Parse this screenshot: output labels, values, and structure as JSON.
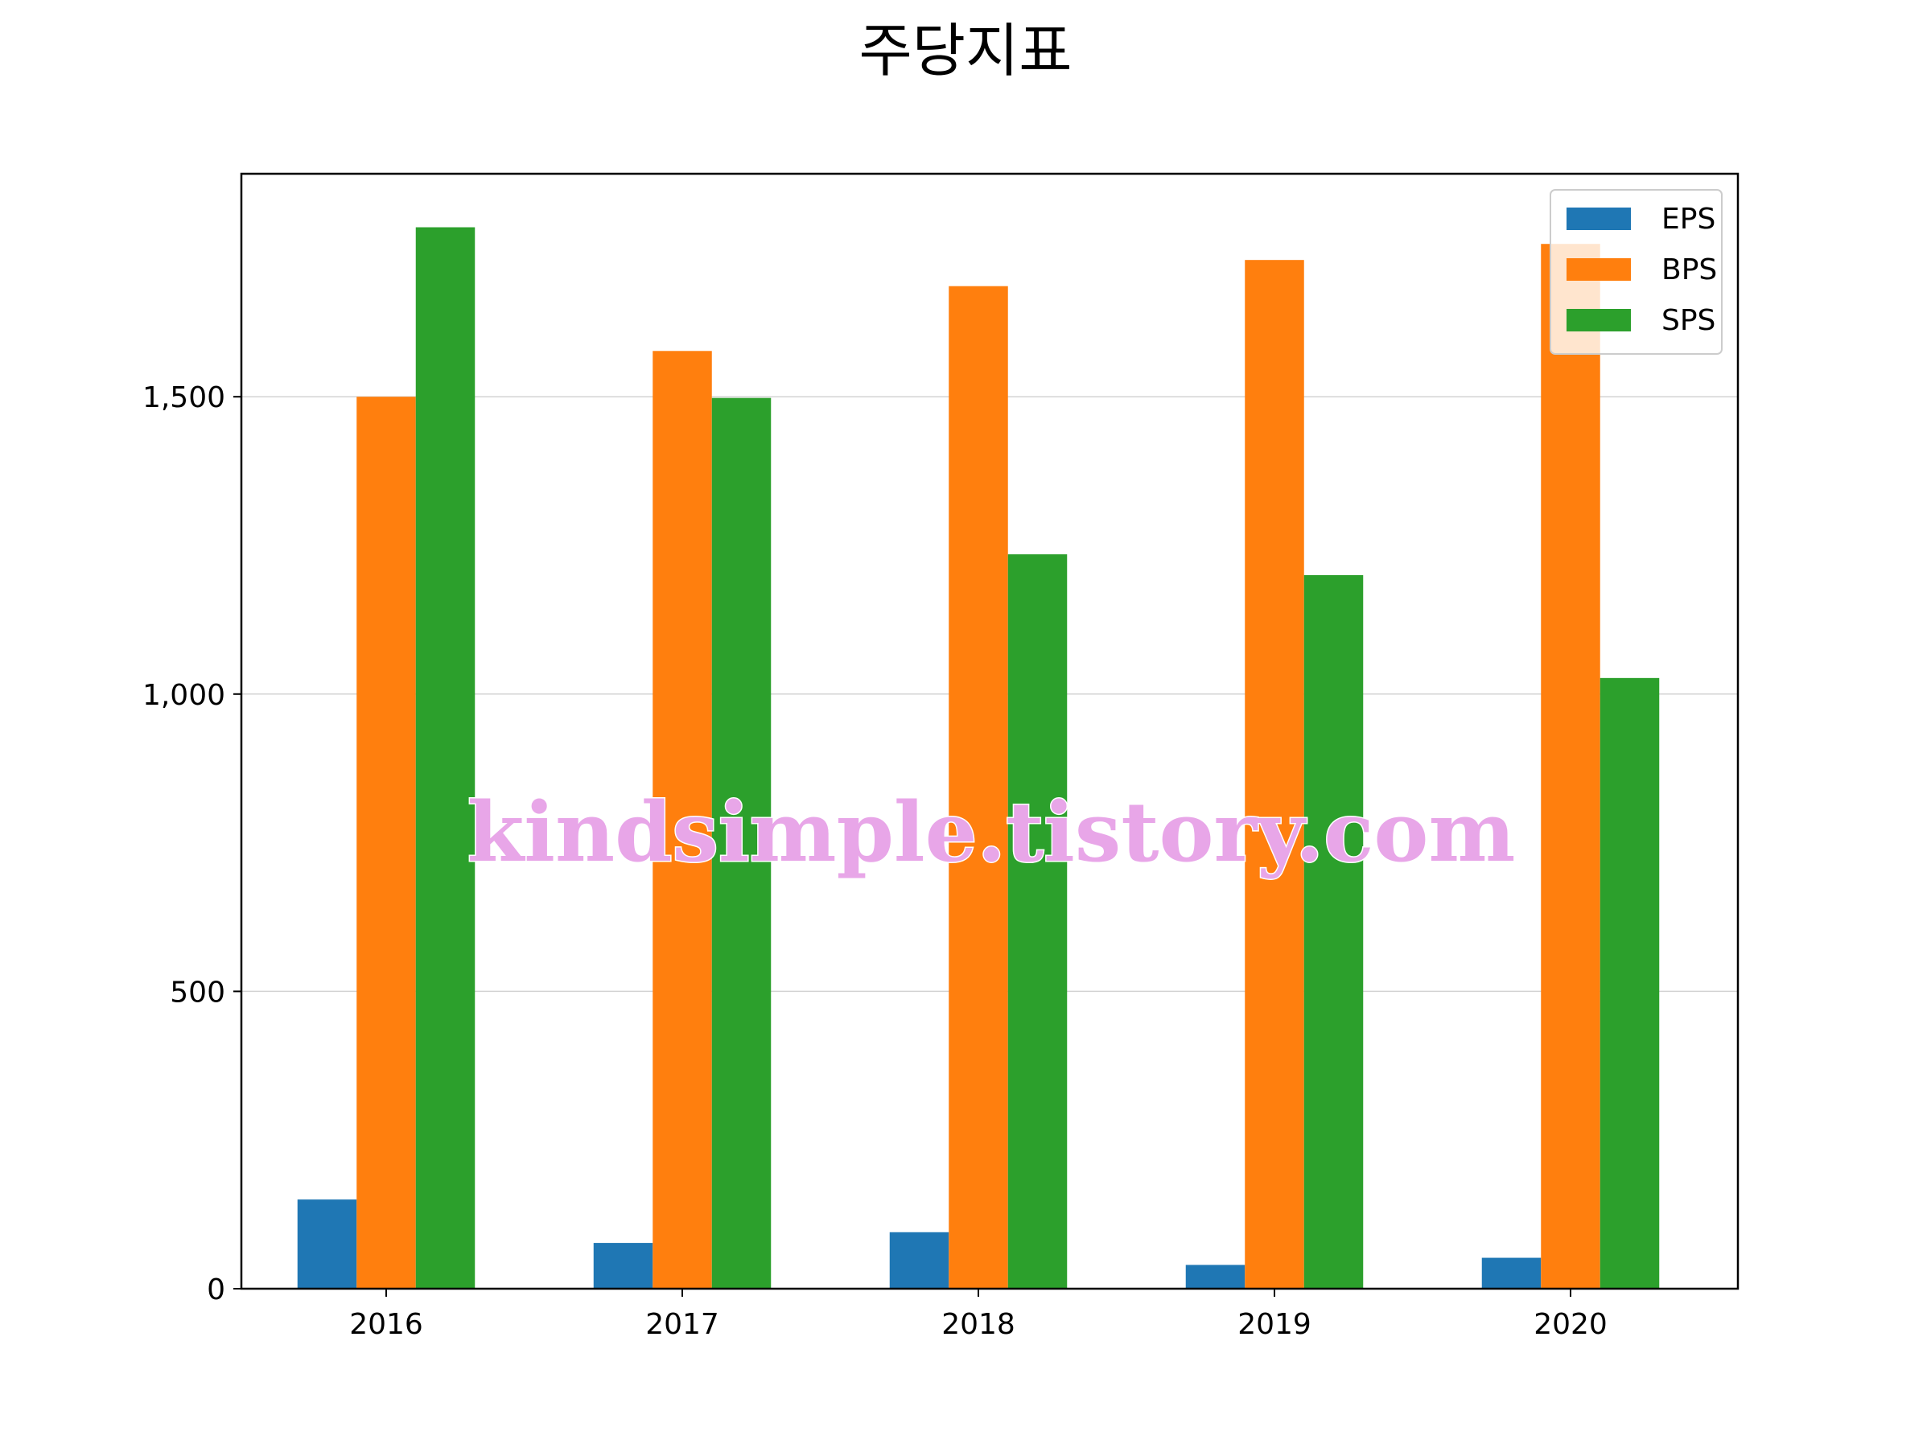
{
  "chart_data": {
    "type": "bar",
    "title": "주당지표",
    "xlabel": "",
    "ylabel": "",
    "categories": [
      "2016",
      "2017",
      "2018",
      "2019",
      "2020"
    ],
    "series": [
      {
        "name": "EPS",
        "color": "#1f77b4",
        "values": [
          150,
          77,
          95,
          40,
          52
        ]
      },
      {
        "name": "BPS",
        "color": "#ff7f0e",
        "values": [
          1500,
          1577,
          1686,
          1730,
          1757
        ]
      },
      {
        "name": "SPS",
        "color": "#2ca02c",
        "values": [
          1785,
          1498,
          1235,
          1200,
          1027
        ]
      }
    ],
    "ylim": [
      0,
      1875
    ],
    "yticks": [
      0,
      500,
      1000,
      1500
    ],
    "ytick_labels": [
      "0",
      "500",
      "1,000",
      "1,500"
    ],
    "grid": "y",
    "legend_position": "top-right"
  },
  "watermark": "kindsimple.tistory.com"
}
